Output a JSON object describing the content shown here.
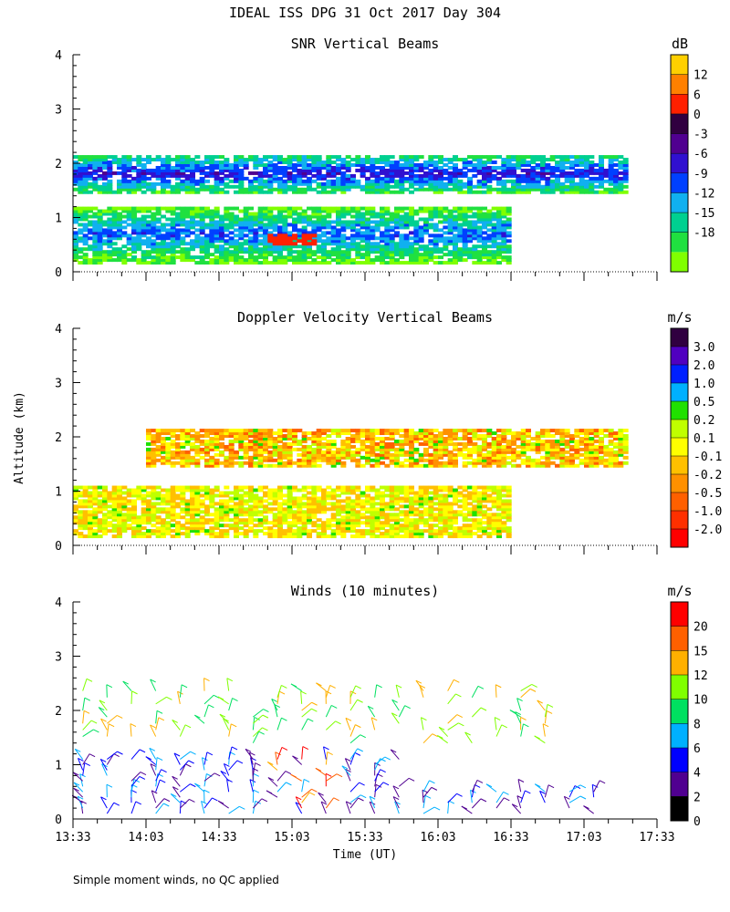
{
  "header": {
    "title": "IDEAL ISS DPG  31 Oct 2017 Day 304"
  },
  "footer": {
    "note": "Simple moment winds, no QC applied"
  },
  "colors": {
    "snr": [
      "#80ff00",
      "#20e040",
      "#00d090",
      "#10b0f0",
      "#0040ff",
      "#3010d0",
      "#500090",
      "#300040",
      "#ff2000",
      "#ff8000",
      "#ffd000"
    ],
    "velocity": [
      "#ff0000",
      "#ff3000",
      "#ff6000",
      "#ff9000",
      "#ffc000",
      "#ffff00",
      "#c0ff00",
      "#20e000",
      "#00b0ff",
      "#0020ff",
      "#5000c0",
      "#300040"
    ],
    "wind": [
      "#000000",
      "#500090",
      "#0000ff",
      "#00b0ff",
      "#00e060",
      "#80ff00",
      "#ffb000",
      "#ff6000",
      "#ff0000"
    ]
  },
  "chart_data": [
    {
      "type": "heatmap",
      "title": "SNR Vertical Beams",
      "ylabel": "",
      "xlabel": "",
      "unit": "dB",
      "colorbar_ticks": [
        "12",
        "6",
        "0",
        "-3",
        "-6",
        "-9",
        "-12",
        "-15",
        "-18"
      ],
      "x_range": [
        "13:33",
        "17:33"
      ],
      "ylim": [
        0,
        4
      ],
      "yticks": [
        "0",
        "1",
        "2",
        "3",
        "4"
      ],
      "layers": [
        {
          "altitude_km_range": [
            1.45,
            2.15
          ],
          "time_range": [
            "13:33",
            "17:20"
          ],
          "snr_dB": -9
        },
        {
          "altitude_km_range": [
            0.15,
            1.2
          ],
          "time_range": [
            "13:33",
            "16:33"
          ],
          "snr_dB": -12
        },
        {
          "altitude_km_range": [
            0.5,
            0.7
          ],
          "time_range": [
            "14:53",
            "15:13"
          ],
          "snr_dB": 0
        }
      ]
    },
    {
      "type": "heatmap",
      "title": "Doppler Velocity Vertical Beams",
      "ylabel": "Altitude (km)",
      "xlabel": "",
      "unit": "m/s",
      "colorbar_ticks": [
        "3.0",
        "2.0",
        "1.0",
        "0.5",
        "0.2",
        "0.1",
        "-0.1",
        "-0.2",
        "-0.5",
        "-1.0",
        "-2.0"
      ],
      "x_range": [
        "13:33",
        "17:33"
      ],
      "ylim": [
        0,
        4
      ],
      "yticks": [
        "0",
        "1",
        "2",
        "3",
        "4"
      ],
      "layers": [
        {
          "altitude_km_range": [
            1.45,
            2.15
          ],
          "time_range": [
            "14:03",
            "17:20"
          ],
          "velocity_m_s": -0.2
        },
        {
          "altitude_km_range": [
            0.15,
            1.1
          ],
          "time_range": [
            "13:33",
            "16:33"
          ],
          "velocity_m_s": 0.1
        }
      ]
    },
    {
      "type": "scatter",
      "title": "Winds (10 minutes)",
      "ylabel": "",
      "xlabel": "Time (UT)",
      "unit": "m/s",
      "colorbar_ticks": [
        "20",
        "15",
        "12",
        "10",
        "8",
        "6",
        "4",
        "2",
        "0"
      ],
      "x_range": [
        "13:33",
        "17:33"
      ],
      "xticks": [
        "13:33",
        "14:03",
        "14:33",
        "15:03",
        "15:33",
        "16:03",
        "16:33",
        "17:03",
        "17:33"
      ],
      "ylim": [
        0,
        4
      ],
      "yticks": [
        "0",
        "1",
        "2",
        "3",
        "4"
      ],
      "wind_columns_start": "13:33",
      "wind_columns_step_minutes": 10,
      "speed_scale_m_s": [
        0,
        2,
        4,
        6,
        8,
        10,
        12,
        15,
        20
      ],
      "upper_layer_range_km": [
        1.4,
        2.4
      ],
      "lower_layer_range_km": [
        0.1,
        1.1
      ]
    }
  ]
}
